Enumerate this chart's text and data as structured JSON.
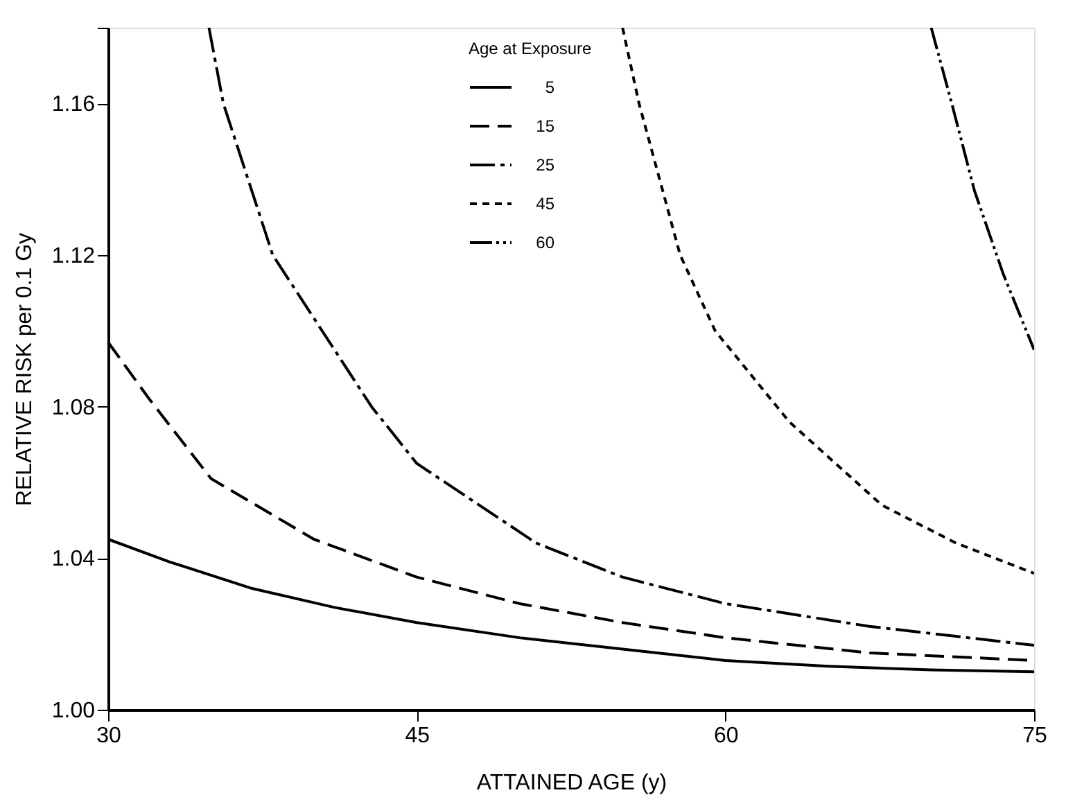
{
  "chart_data": {
    "type": "line",
    "xlabel": "ATTAINED AGE (y)",
    "ylabel": "RELATIVE RISK per 0.1 Gy",
    "legend_title": "Age at Exposure",
    "legend": "top",
    "grid": false,
    "marker": "none",
    "xlim": [
      30,
      75
    ],
    "xticks": [
      30,
      45,
      60,
      75
    ],
    "ylim": [
      1.0,
      1.18
    ],
    "yticks": [
      {
        "value": 1.0,
        "label": "1.00"
      },
      1.04,
      1.08,
      1.12,
      1.16,
      {
        "value": 1.18,
        "label": null
      }
    ],
    "series": [
      {
        "name": "5",
        "color": "#000000",
        "line_style": "solid",
        "x": [
          30,
          33,
          37,
          41,
          45,
          50,
          55,
          60,
          65,
          70,
          75
        ],
        "values": [
          1.045,
          1.039,
          1.032,
          1.027,
          1.023,
          1.019,
          1.016,
          1.013,
          1.0115,
          1.0105,
          1.01
        ]
      },
      {
        "name": "15",
        "color": "#000000",
        "line_style": "dashed",
        "x": [
          30,
          32,
          35,
          40,
          45,
          50,
          55,
          60,
          67,
          75
        ],
        "values": [
          1.097,
          1.082,
          1.061,
          1.045,
          1.035,
          1.028,
          1.023,
          1.019,
          1.015,
          1.013
        ]
      },
      {
        "name": "25",
        "color": "#000000",
        "line_style": "dashdot",
        "x": [
          34.9,
          35.6,
          38,
          42.8,
          45,
          50.8,
          55,
          60,
          67,
          75
        ],
        "values": [
          1.18,
          1.16,
          1.12,
          1.08,
          1.065,
          1.044,
          1.035,
          1.028,
          1.022,
          1.017
        ]
      },
      {
        "name": "45",
        "color": "#000000",
        "line_style": "dotted",
        "x": [
          55,
          55.8,
          57.8,
          59.5,
          61.9,
          63.1,
          67.6,
          71.2,
          75
        ],
        "values": [
          1.18,
          1.16,
          1.12,
          1.1,
          1.084,
          1.076,
          1.054,
          1.044,
          1.036
        ]
      },
      {
        "name": "60",
        "color": "#000000",
        "line_style": "dashdotdot",
        "x": [
          70,
          71,
          72.1,
          73.5,
          75
        ],
        "values": [
          1.18,
          1.16,
          1.137,
          1.115,
          1.095
        ]
      }
    ]
  }
}
